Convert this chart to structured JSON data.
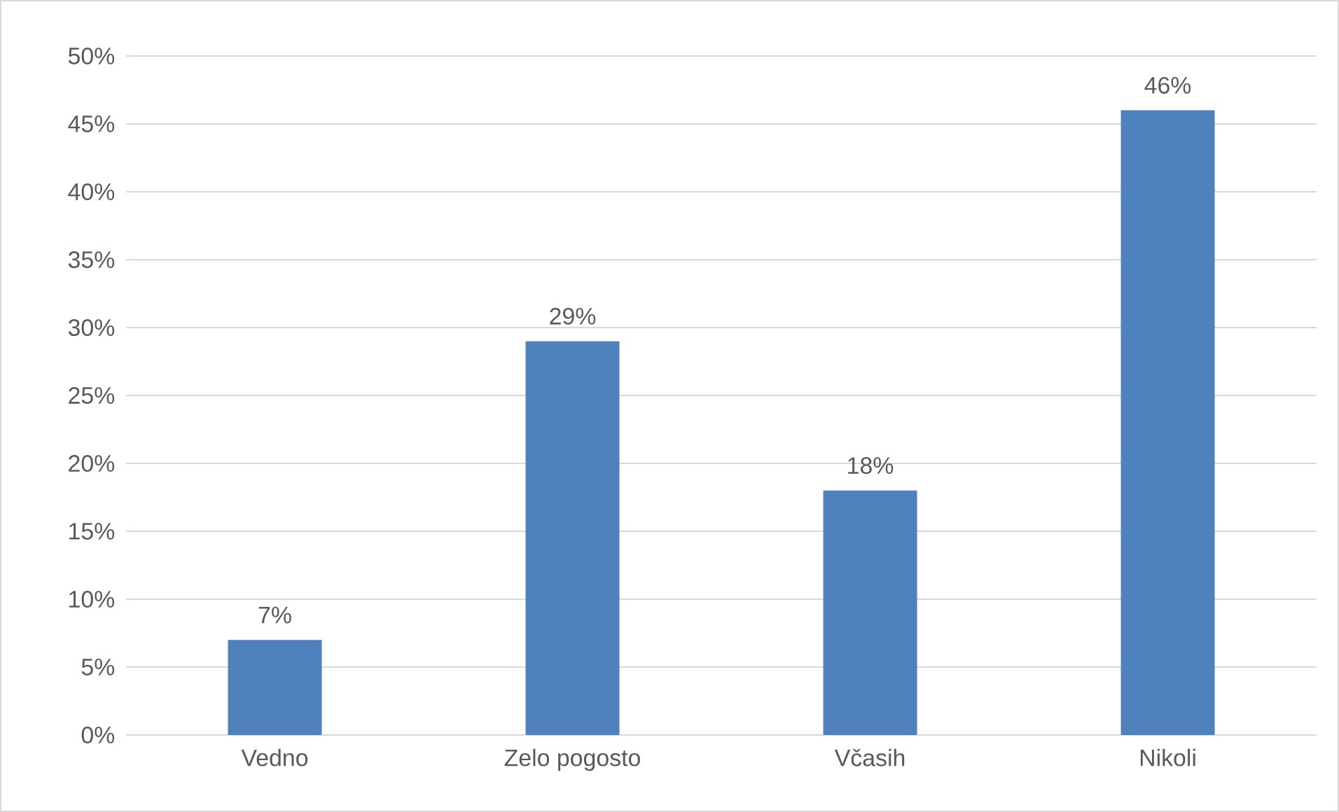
{
  "chart_data": {
    "type": "bar",
    "categories": [
      "Vedno",
      "Zelo pogosto",
      "Včasih",
      "Nikoli"
    ],
    "values": [
      7,
      29,
      18,
      46
    ],
    "value_labels": [
      "7%",
      "29%",
      "18%",
      "46%"
    ],
    "color": "#4f81bd",
    "ylim": [
      0,
      50
    ],
    "yticks": [
      {
        "value": 0,
        "label": "0%"
      },
      {
        "value": 5,
        "label": "5%"
      },
      {
        "value": 10,
        "label": "10%"
      },
      {
        "value": 15,
        "label": "15%"
      },
      {
        "value": 20,
        "label": "20%"
      },
      {
        "value": 25,
        "label": "25%"
      },
      {
        "value": 30,
        "label": "30%"
      },
      {
        "value": 35,
        "label": "35%"
      },
      {
        "value": 40,
        "label": "40%"
      },
      {
        "value": 45,
        "label": "45%"
      },
      {
        "value": 50,
        "label": "50%"
      }
    ],
    "grid": "y"
  }
}
